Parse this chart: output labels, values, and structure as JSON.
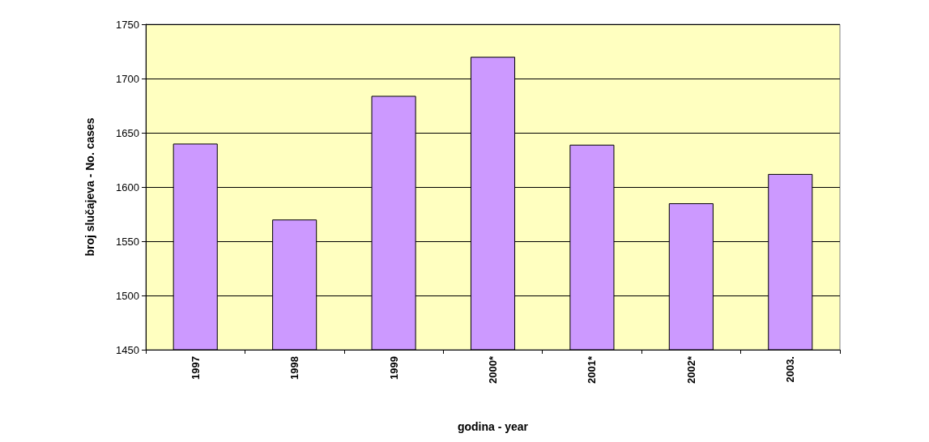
{
  "chart_data": {
    "type": "bar",
    "xlabel": "godina - year",
    "ylabel": "broj slučajeva - No. cases",
    "categories": [
      "1997",
      "1998",
      "1999",
      "2000*",
      "2001*",
      "2002*",
      "2003."
    ],
    "values": [
      1640,
      1570,
      1684,
      1720,
      1639,
      1585,
      1612
    ],
    "color": "#cc99ff",
    "ylim": [
      1450,
      1750
    ],
    "yticks": [
      1450,
      1500,
      1550,
      1600,
      1650,
      1700,
      1750
    ],
    "grid": "y"
  }
}
